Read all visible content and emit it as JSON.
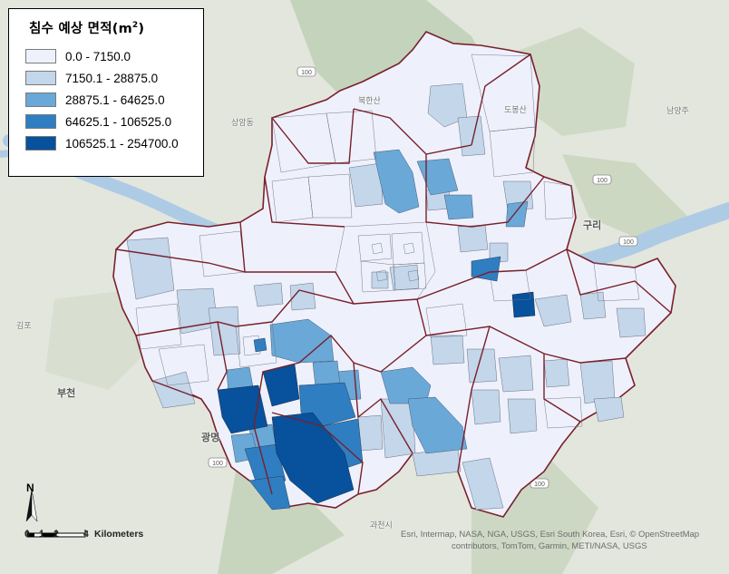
{
  "legend": {
    "title": "침수 예상 면적",
    "unit": "(m",
    "unit_sup": "2",
    "unit_close": ")",
    "classes": [
      {
        "label": "0.0 - 7150.0",
        "color": "#eef1fb"
      },
      {
        "label": "7150.1 - 28875.0",
        "color": "#c3d6ea"
      },
      {
        "label": "28875.1 - 64625.0",
        "color": "#6aa8d8"
      },
      {
        "label": "64625.1 - 106525.0",
        "color": "#2f7ec2"
      },
      {
        "label": "106525.1 - 254700.0",
        "color": "#08519c"
      }
    ]
  },
  "colors": {
    "boundary": "#7a1f2b",
    "terrain": "#e3e6dc",
    "river": "#aecbe6",
    "forest": "#b9cbb2"
  },
  "places": {
    "guri": "구리",
    "bucheon": "부천",
    "gwangmyeong": "광명",
    "gwacheon": "과천시",
    "sangamdong": "상암동",
    "bukhansan": "북한산",
    "gimpo": "김포",
    "dobong": "도봉산",
    "namyang": "남양주"
  },
  "road_badges": [
    "100",
    "100",
    "100",
    "100",
    "100"
  ],
  "scale_bar": {
    "ticks": [
      "0",
      "1",
      "2",
      "4"
    ],
    "unit": "Kilometers"
  },
  "north_arrow": {
    "label": "N"
  },
  "attribution": {
    "line1": "Esri, Intermap, NASA, NGA, USGS, Esri South Korea, Esri, © OpenStreetMap",
    "line2": "contributors, TomTom, Garmin, METI/NASA, USGS"
  },
  "choropleth": {
    "classification": "flood_area_m2",
    "class_count": 5,
    "districts_by_class": [
      28,
      30,
      12,
      6,
      4
    ]
  }
}
